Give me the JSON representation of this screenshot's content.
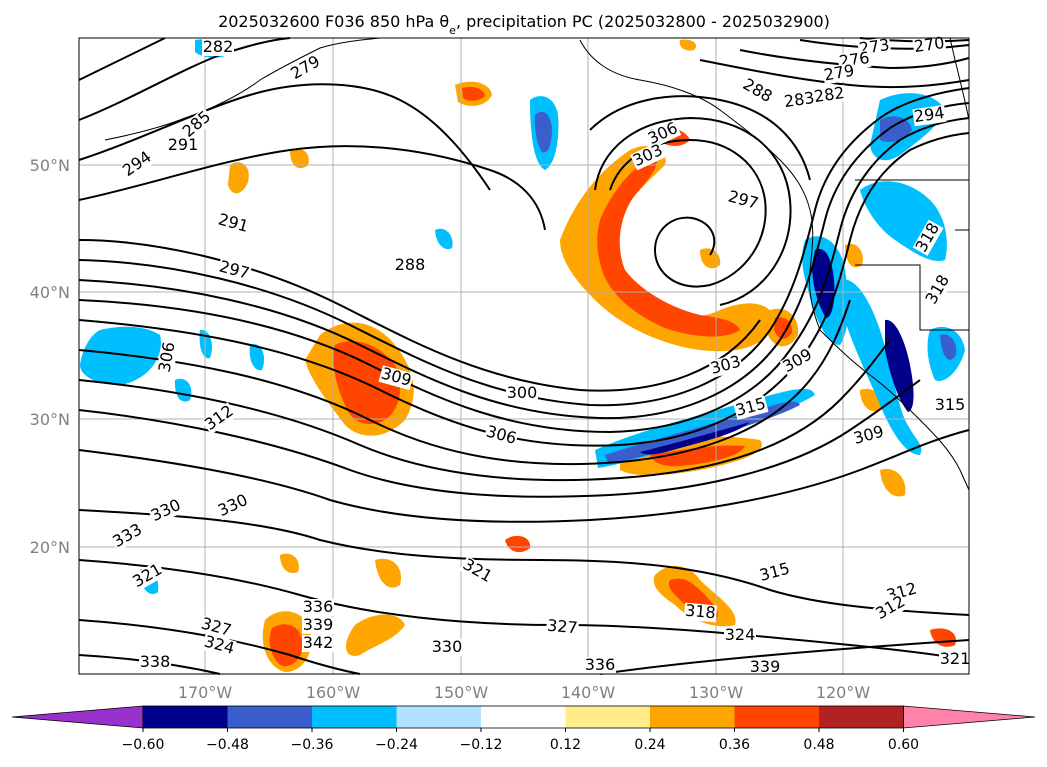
{
  "title": "2025032600 F036 850 hPa θ",
  "title_sub": "e",
  "title_rest": ", precipitation PC (2025032800 - 2025032900)",
  "lat_ticks": [
    "50°N",
    "40°N",
    "30°N",
    "20°N"
  ],
  "lon_ticks": [
    "170°W",
    "160°W",
    "150°W",
    "140°W",
    "130°W",
    "120°W"
  ],
  "contour_labels": [
    "282",
    "279",
    "285",
    "291",
    "294",
    "291",
    "297",
    "288",
    "273",
    "270",
    "276",
    "279",
    "283",
    "282",
    "294",
    "288",
    "306",
    "303",
    "297",
    "318",
    "318",
    "306",
    "309",
    "300",
    "306",
    "312",
    "303",
    "309",
    "315",
    "309",
    "315",
    "330",
    "330",
    "333",
    "321",
    "321",
    "336",
    "339",
    "342",
    "327",
    "324",
    "330",
    "318",
    "327",
    "336",
    "324",
    "315",
    "312",
    "312",
    "339",
    "338",
    "321"
  ],
  "colorbar": {
    "colors": [
      "#9932cc",
      "#00008b",
      "#3a5fcd",
      "#00bfff",
      "#b0e2ff",
      "#ffffff",
      "#ffec8b",
      "#ffa500",
      "#ff4500",
      "#b22222",
      "#ff83a8"
    ],
    "ticks": [
      "−0.60",
      "−0.48",
      "−0.36",
      "−0.24",
      "−0.12",
      "0.12",
      "0.24",
      "0.36",
      "0.48",
      "0.60"
    ]
  },
  "map": {
    "ocean": "#ffffff",
    "grid_color": "#b0b0b0",
    "contour_color": "#000000"
  }
}
